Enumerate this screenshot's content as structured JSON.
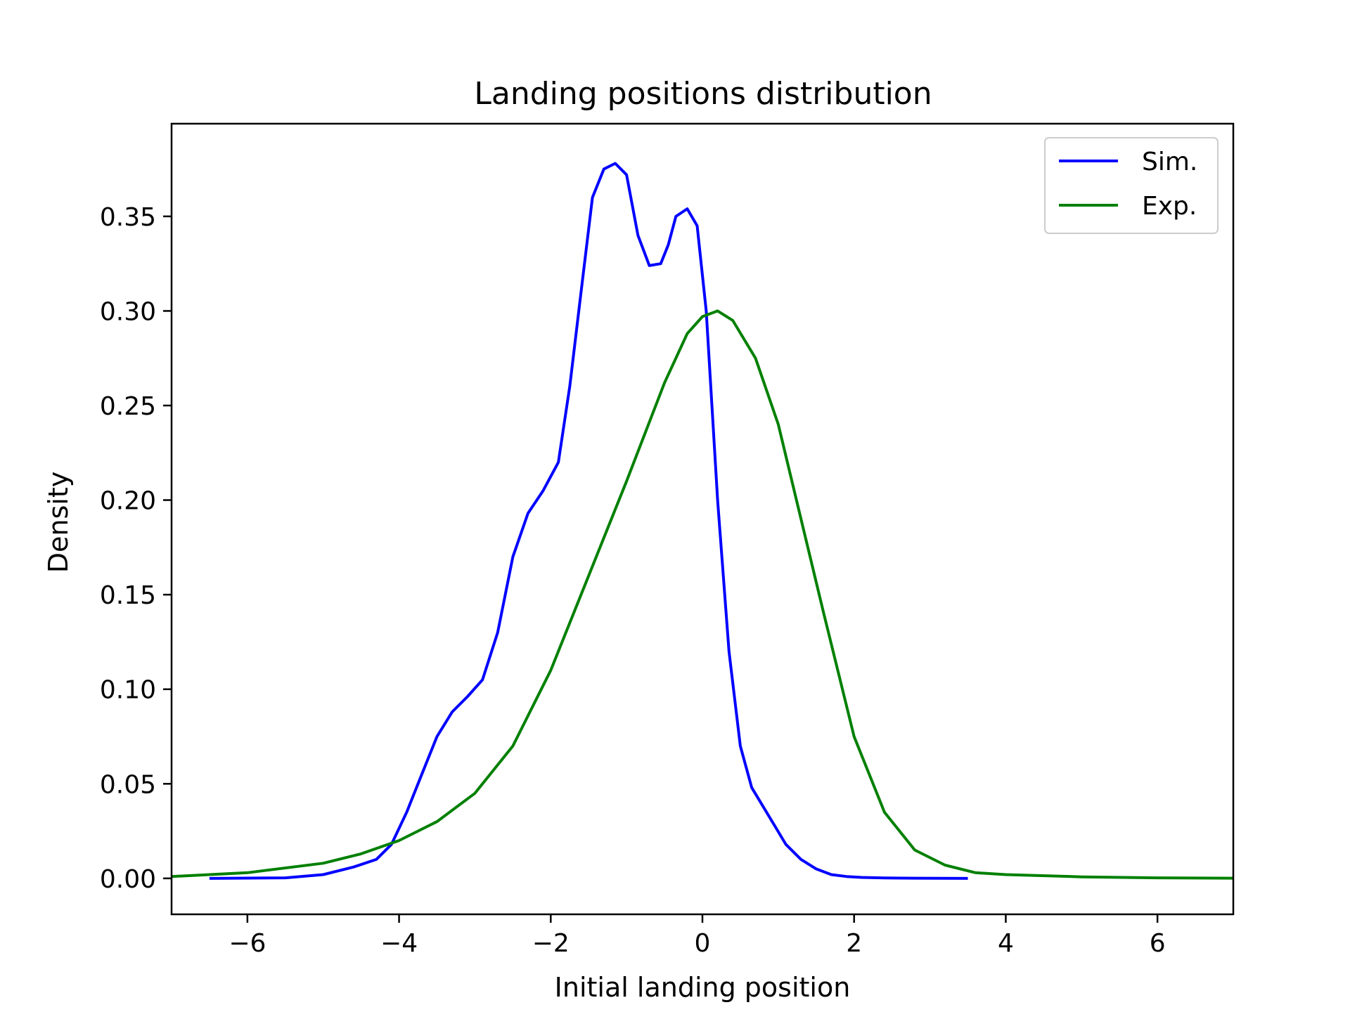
{
  "chart_data": {
    "type": "line",
    "title": "Landing positions distribution",
    "xlabel": "Initial landing position",
    "ylabel": "Density",
    "xlim": [
      -7,
      7
    ],
    "ylim": [
      -0.019,
      0.399
    ],
    "xticks": [
      {
        "value": -6,
        "label": "−6"
      },
      {
        "value": -4,
        "label": "−4"
      },
      {
        "value": -2,
        "label": "−2"
      },
      {
        "value": 0,
        "label": "0"
      },
      {
        "value": 2,
        "label": "2"
      },
      {
        "value": 4,
        "label": "4"
      },
      {
        "value": 6,
        "label": "6"
      }
    ],
    "yticks": [
      {
        "value": 0.0,
        "label": "0.00"
      },
      {
        "value": 0.05,
        "label": "0.05"
      },
      {
        "value": 0.1,
        "label": "0.10"
      },
      {
        "value": 0.15,
        "label": "0.15"
      },
      {
        "value": 0.2,
        "label": "0.20"
      },
      {
        "value": 0.25,
        "label": "0.25"
      },
      {
        "value": 0.3,
        "label": "0.30"
      },
      {
        "value": 0.35,
        "label": "0.35"
      }
    ],
    "grid": false,
    "legend": "top-right",
    "series": [
      {
        "name": "Sim.",
        "color": "#0000ff",
        "x": [
          -6.5,
          -5.5,
          -5.0,
          -4.6,
          -4.3,
          -4.1,
          -3.9,
          -3.7,
          -3.5,
          -3.3,
          -3.1,
          -2.9,
          -2.7,
          -2.5,
          -2.3,
          -2.1,
          -1.9,
          -1.75,
          -1.6,
          -1.45,
          -1.3,
          -1.15,
          -1.0,
          -0.85,
          -0.7,
          -0.55,
          -0.45,
          -0.35,
          -0.2,
          -0.07,
          0.05,
          0.2,
          0.35,
          0.5,
          0.65,
          0.8,
          0.95,
          1.1,
          1.3,
          1.5,
          1.7,
          1.9,
          2.1,
          2.4,
          2.8,
          3.5
        ],
        "y": [
          0.0,
          0.0003,
          0.002,
          0.006,
          0.01,
          0.018,
          0.035,
          0.055,
          0.075,
          0.088,
          0.096,
          0.105,
          0.13,
          0.17,
          0.193,
          0.205,
          0.22,
          0.26,
          0.31,
          0.36,
          0.375,
          0.378,
          0.372,
          0.34,
          0.324,
          0.325,
          0.335,
          0.35,
          0.354,
          0.345,
          0.3,
          0.2,
          0.12,
          0.07,
          0.048,
          0.038,
          0.028,
          0.018,
          0.01,
          0.005,
          0.002,
          0.001,
          0.0005,
          0.0002,
          0.0001,
          0.0
        ]
      },
      {
        "name": "Exp.",
        "color": "#008000",
        "x": [
          -7.0,
          -6.0,
          -5.0,
          -4.5,
          -4.0,
          -3.5,
          -3.0,
          -2.5,
          -2.0,
          -1.5,
          -1.0,
          -0.5,
          -0.2,
          0.0,
          0.2,
          0.4,
          0.7,
          1.0,
          1.3,
          1.6,
          2.0,
          2.4,
          2.8,
          3.2,
          3.6,
          4.0,
          5.0,
          6.0,
          7.0
        ],
        "y": [
          0.001,
          0.003,
          0.008,
          0.013,
          0.02,
          0.03,
          0.045,
          0.07,
          0.11,
          0.16,
          0.21,
          0.262,
          0.288,
          0.297,
          0.3,
          0.295,
          0.275,
          0.24,
          0.19,
          0.14,
          0.075,
          0.035,
          0.015,
          0.007,
          0.003,
          0.002,
          0.0008,
          0.0003,
          0.0001
        ]
      }
    ]
  }
}
